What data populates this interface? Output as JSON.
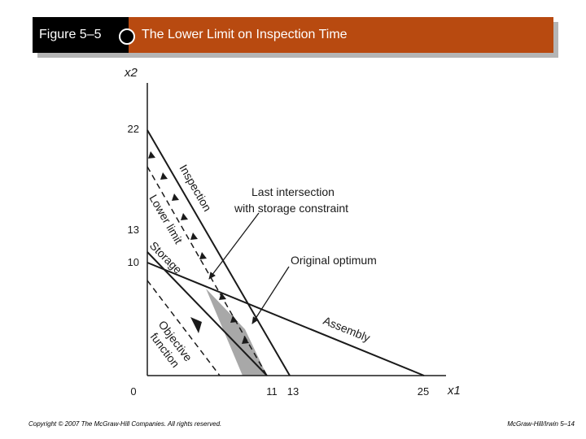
{
  "header": {
    "figure_label": "Figure 5–5",
    "title": "The Lower Limit on Inspection Time"
  },
  "diagram": {
    "axis_x_label": "x1",
    "axis_y_label": "x2",
    "y_ticks": [
      "22",
      "13",
      "10"
    ],
    "x_ticks": [
      "0",
      "11",
      "13",
      "25"
    ],
    "labels": {
      "inspection": "Inspection",
      "lower_limit": "Lower limit",
      "storage": "Storage",
      "assembly": "Assembly",
      "objective_line1": "Objective",
      "objective_line2": "function",
      "last_intersection_line1": "Last intersection",
      "last_intersection_line2": "with storage constraint",
      "original_optimum": "Original optimum"
    },
    "colors": {
      "feasible_region": "#a8a8a8",
      "lines": "#1a1a1a",
      "header_accent": "#b84a10"
    }
  },
  "footer": {
    "copyright": "Copyright © 2007 The McGraw-Hill Companies. All rights reserved.",
    "page": "McGraw-Hill/Irwin  5–14"
  }
}
